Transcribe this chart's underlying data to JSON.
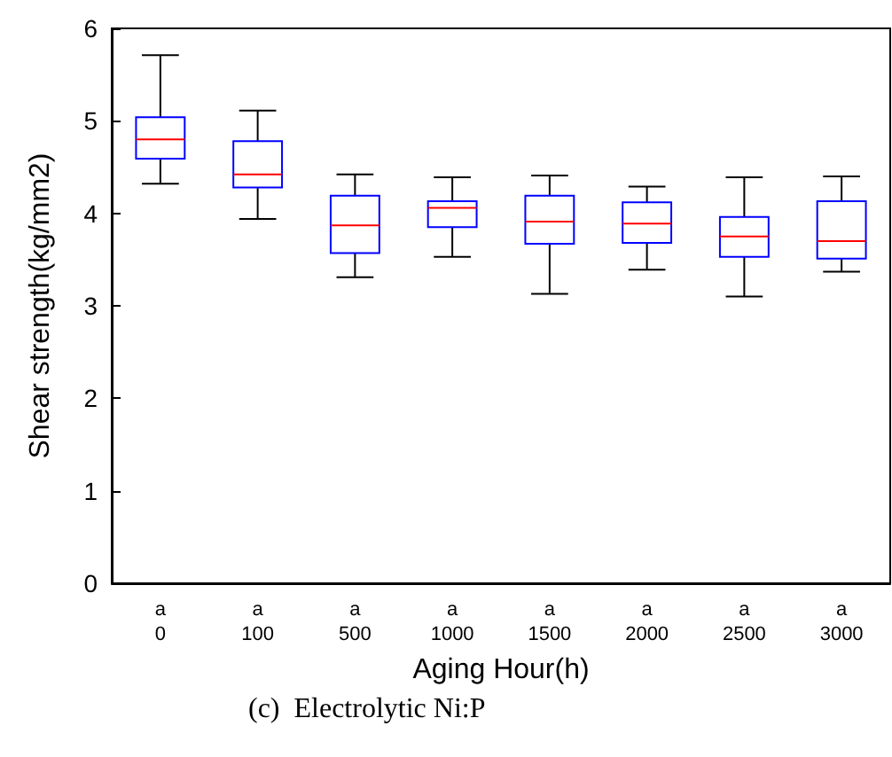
{
  "chart_data": {
    "type": "box",
    "xlabel": "Aging Hour(h)",
    "ylabel": "Shear strength(kg/mm2)",
    "annotations": [
      "(c)  Electrolytic Ni:P"
    ],
    "categories": [
      "a\n0",
      "a\n100",
      "a\n500",
      "a\n1000",
      "a\n1500",
      "a\n2000",
      "a\n2500",
      "a\n3000"
    ],
    "ylim": [
      0,
      6
    ],
    "yticks": [
      0,
      1,
      2,
      3,
      4,
      5,
      6
    ],
    "grid": false,
    "series": [
      {
        "color": "#0000ff",
        "boxes": [
          {
            "low": 4.32,
            "q1": 4.59,
            "median": 4.8,
            "q3": 5.04,
            "high": 5.71
          },
          {
            "low": 3.94,
            "q1": 4.28,
            "median": 4.42,
            "q3": 4.78,
            "high": 5.11
          },
          {
            "low": 3.31,
            "q1": 3.57,
            "median": 3.87,
            "q3": 4.19,
            "high": 4.42
          },
          {
            "low": 3.53,
            "q1": 3.85,
            "median": 4.06,
            "q3": 4.13,
            "high": 4.39
          },
          {
            "low": 3.13,
            "q1": 3.67,
            "median": 3.91,
            "q3": 4.19,
            "high": 4.41
          },
          {
            "low": 3.39,
            "q1": 3.68,
            "median": 3.89,
            "q3": 4.12,
            "high": 4.29
          },
          {
            "low": 3.1,
            "q1": 3.53,
            "median": 3.75,
            "q3": 3.96,
            "high": 4.39
          },
          {
            "low": 3.37,
            "q1": 3.51,
            "median": 3.7,
            "q3": 4.13,
            "high": 4.4
          }
        ]
      }
    ]
  }
}
